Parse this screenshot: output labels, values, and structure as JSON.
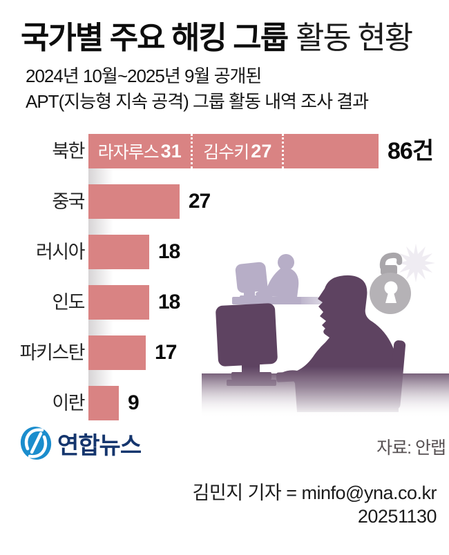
{
  "header": {
    "title_bold": "국가별 주요 해킹 그룹",
    "title_light": "활동 현황",
    "subtitle_line1": "2024년 10월~2025년 9월 공개된",
    "subtitle_line2": "APT(지능형 지속 공격) 그룹 활동 내역 조사 결과"
  },
  "chart_data": {
    "type": "bar",
    "orientation": "horizontal",
    "title": "국가별 주요 해킹 그룹 활동 현황",
    "categories": [
      "북한",
      "중국",
      "러시아",
      "인도",
      "파키스탄",
      "이란"
    ],
    "values": [
      86,
      27,
      18,
      18,
      17,
      9
    ],
    "value_labels": [
      "86건",
      "27",
      "18",
      "18",
      "17",
      "9"
    ],
    "unit": "건",
    "xlim": [
      0,
      88
    ],
    "grid": false,
    "bar_color": "#d98383",
    "first_bar_segments": [
      {
        "label": "라자루스",
        "value": 31
      },
      {
        "label": "김수키",
        "value": 27
      },
      {
        "label": "",
        "value": 28
      }
    ]
  },
  "colors": {
    "bar": "#d98383",
    "dark_purple": "#5e4361",
    "lavender": "#b7aec7",
    "lock_gray": "#b5b2b6",
    "star_white": "#efecf2",
    "logo_blue": "#1b8dcd",
    "logo_navy": "#14356d"
  },
  "footer": {
    "logo_text": "연합뉴스",
    "source": "자료: 안랩",
    "credit": "김민지 기자 = minfo@yna.co.kr",
    "date": "20251130"
  }
}
